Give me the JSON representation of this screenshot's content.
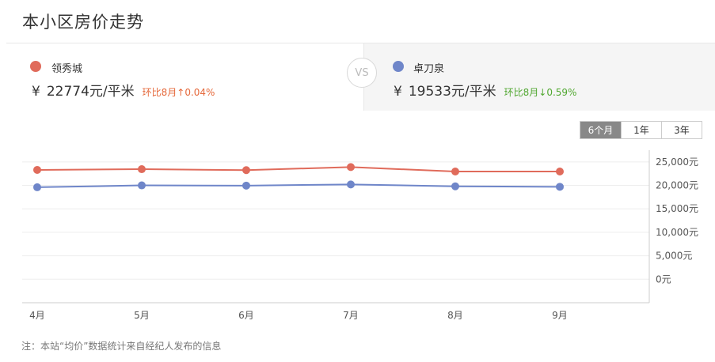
{
  "page_title": "本小区房价走势",
  "compare": {
    "left": {
      "name": "领秀城",
      "currency": "¥",
      "price": "22774元/平米",
      "mom": "环比8月↑0.04%",
      "color": "#e06b5b",
      "mom_color": "#e5683a"
    },
    "vs": "VS",
    "right": {
      "name": "卓刀泉",
      "currency": "¥",
      "price": "19533元/平米",
      "mom": "环比8月↓0.59%",
      "color": "#6f86c9",
      "mom_color": "#52a832"
    }
  },
  "range_tabs": [
    {
      "label": "6个月",
      "active": true
    },
    {
      "label": "1年",
      "active": false
    },
    {
      "label": "3年",
      "active": false
    }
  ],
  "footnote": "注：本站“均价”数据统计来自经纪人发布的信息",
  "chart_data": {
    "type": "line",
    "categories": [
      "4月",
      "5月",
      "6月",
      "7月",
      "8月",
      "9月"
    ],
    "series": [
      {
        "name": "领秀城",
        "color": "#e06b5b",
        "values": [
          23300,
          23450,
          23250,
          23900,
          22950,
          22950
        ]
      },
      {
        "name": "卓刀泉",
        "color": "#6f86c9",
        "values": [
          19600,
          20000,
          19950,
          20200,
          19800,
          19700
        ]
      }
    ],
    "yticks": [
      "25,000元",
      "20,000元",
      "15,000元",
      "10,000元",
      "5,000元",
      "0元"
    ],
    "ylim": [
      -5000,
      27500
    ],
    "grid": true,
    "yaxis_position": "right"
  }
}
